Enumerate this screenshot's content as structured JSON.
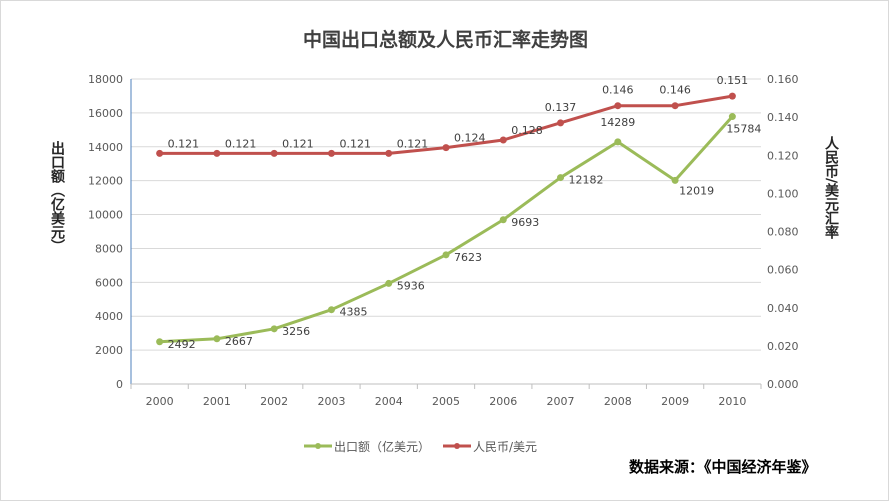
{
  "chart_data": {
    "type": "line",
    "title": "中国出口总额及人民币汇率走势图",
    "categories": [
      "2000",
      "2001",
      "2002",
      "2003",
      "2004",
      "2005",
      "2006",
      "2007",
      "2008",
      "2009",
      "2010"
    ],
    "series": [
      {
        "name": "出口额（亿美元）",
        "axis": "left",
        "color": "#9BBB59",
        "values": [
          2492,
          2667,
          3256,
          4385,
          5936,
          7623,
          9693,
          12182,
          14289,
          12019,
          15784
        ],
        "labels": [
          "2492",
          "2667",
          "3256",
          "4385",
          "5936",
          "7623",
          "9693",
          "12182",
          "14289",
          "12019",
          "15784"
        ]
      },
      {
        "name": "人民币/美元",
        "axis": "right",
        "color": "#C0504D",
        "values": [
          0.121,
          0.121,
          0.121,
          0.121,
          0.121,
          0.124,
          0.128,
          0.137,
          0.146,
          0.146,
          0.151
        ],
        "labels": [
          "0.121",
          "0.121",
          "0.121",
          "0.121",
          "0.121",
          "0.124",
          "0.128",
          "0.137",
          "0.146",
          "0.146",
          "0.151"
        ]
      }
    ],
    "ylabel": "出口额（亿美元）",
    "y2label": "人民币/美元汇率",
    "ylim": [
      0,
      18000
    ],
    "y2lim": [
      0,
      0.16
    ],
    "yticks": [
      "0",
      "2000",
      "4000",
      "6000",
      "8000",
      "10000",
      "12000",
      "14000",
      "16000",
      "18000"
    ],
    "y2ticks": [
      "0.000",
      "0.020",
      "0.040",
      "0.060",
      "0.080",
      "0.100",
      "0.120",
      "0.140",
      "0.160"
    ],
    "grid": true,
    "legend": "bottom",
    "source": "数据来源：《中国经济年鉴》"
  }
}
